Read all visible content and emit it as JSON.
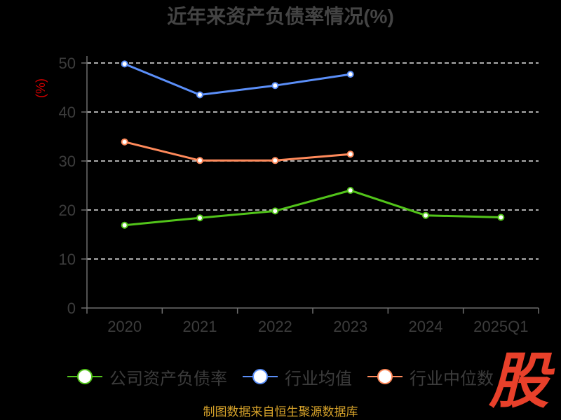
{
  "chart_data": {
    "type": "line",
    "title": "近年来资产负债率情况(%)",
    "ylabel": "(%)",
    "xlabel": "",
    "categories": [
      "2020",
      "2021",
      "2022",
      "2023",
      "2024",
      "2025Q1"
    ],
    "ylim": [
      0,
      50
    ],
    "yticks": [
      0,
      10,
      20,
      30,
      40,
      50
    ],
    "grid": true,
    "legend_position": "bottom",
    "series": [
      {
        "name": "公司资产负债率",
        "color": "#52c41a",
        "values": [
          16.9,
          18.4,
          19.8,
          24.0,
          18.9,
          18.5
        ]
      },
      {
        "name": "行业均值",
        "color": "#5b8ff9",
        "values": [
          49.8,
          43.5,
          45.4,
          47.7,
          null,
          null
        ]
      },
      {
        "name": "行业中位数",
        "color": "#ff8a5b",
        "values": [
          33.9,
          30.1,
          30.1,
          31.4,
          null,
          null
        ]
      }
    ]
  },
  "watermark": {
    "text": "股",
    "color": "#e8402a"
  },
  "source_note": "制图数据来自恒生聚源数据库",
  "colors": {
    "background": "#000000",
    "gridline": "#e6e6e6",
    "axis": "#6e6e6e",
    "tick_label": "#3c3c3c",
    "ylabel": "#cc0000",
    "source": "#d6a22a"
  }
}
